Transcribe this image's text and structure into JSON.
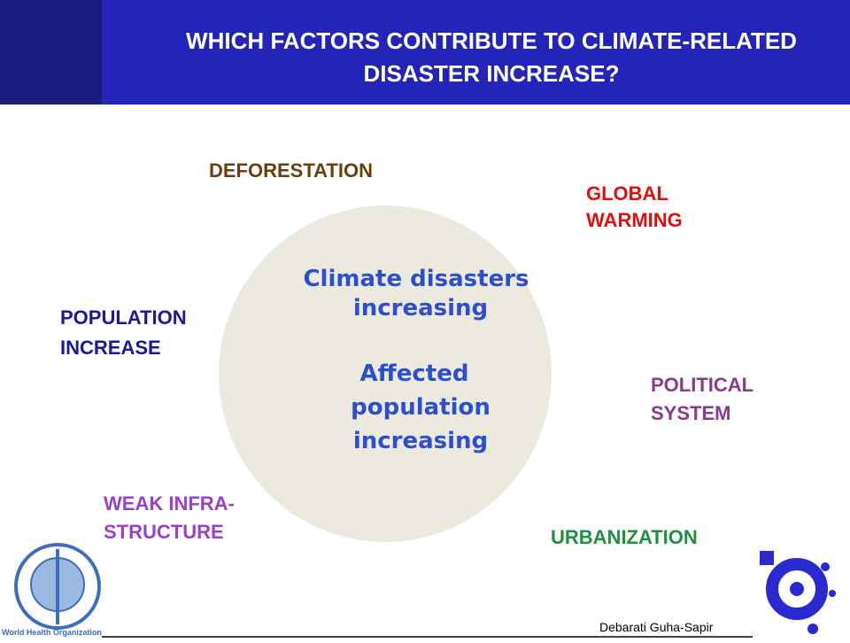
{
  "header": {
    "title_line1": "WHICH FACTORS CONTRIBUTE TO CLIMATE-RELATED",
    "title_line2": "DISASTER INCREASE?"
  },
  "center": {
    "line1": "Climate disasters",
    "line2": "increasing",
    "line3": "Affected",
    "line4": "population",
    "line5": "increasing"
  },
  "factors": [
    {
      "line1": "DEFORESTATION"
    },
    {
      "line1": "GLOBAL",
      "line2": "WARMING"
    },
    {
      "line1": "POPULATION",
      "line2": "INCREASE"
    },
    {
      "line1": "POLITICAL",
      "line2": "SYSTEM"
    },
    {
      "line1": "WEAK INFRA-",
      "line2": "STRUCTURE"
    },
    {
      "line1": "URBANIZATION"
    }
  ],
  "footer": {
    "who": "World Health Organization",
    "author": "Debarati Guha-Sapir"
  }
}
